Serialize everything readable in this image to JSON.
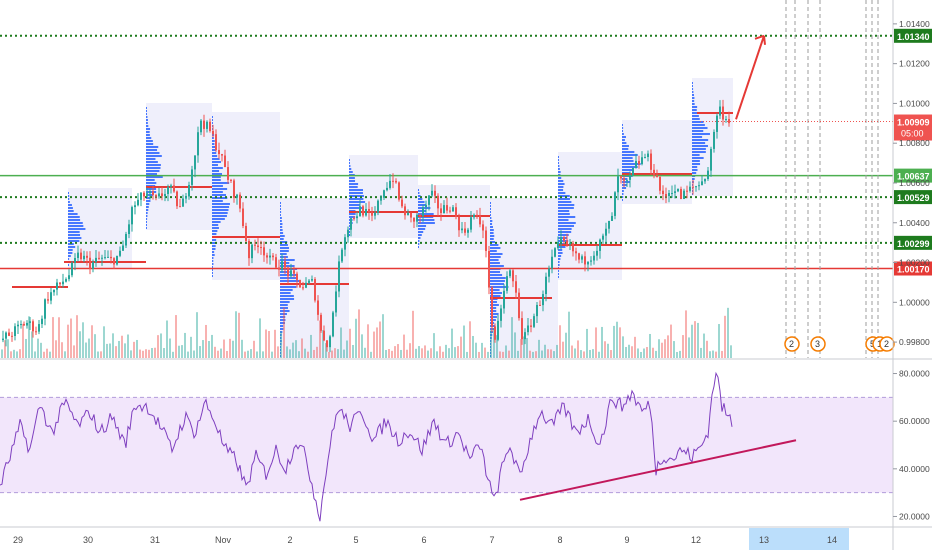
{
  "chart_data": [
    {
      "type": "candlestick",
      "panel": "price",
      "y_axis_ticks": [
        "1.01400",
        "1.01200",
        "1.01000",
        "1.00800",
        "1.00600",
        "1.00400",
        "1.00200",
        "1.00000",
        "0.99800"
      ],
      "ylim": [
        0.9972,
        1.0152
      ],
      "horizontal_levels": [
        {
          "value": 1.0134,
          "label": "1.01340",
          "style": "dotted",
          "color": "#1e7b1e"
        },
        {
          "value": 1.00637,
          "label": "1.00637",
          "style": "solid",
          "color": "#4caf50"
        },
        {
          "value": 1.00529,
          "label": "1.00529",
          "style": "dotted",
          "color": "#1e7b1e"
        },
        {
          "value": 1.00299,
          "label": "1.00299",
          "style": "dotted",
          "color": "#1e7b1e"
        },
        {
          "value": 1.0017,
          "label": "1.00170",
          "style": "solid",
          "color": "#e53935"
        }
      ],
      "current_price": {
        "value": 1.00909,
        "label": "1.00909",
        "countdown": "05:00",
        "color": "#ef5350"
      },
      "price_path": [
        {
          "t": 0,
          "p": 0.9981
        },
        {
          "t": 12,
          "p": 0.9985
        },
        {
          "t": 25,
          "p": 0.999
        },
        {
          "t": 37,
          "p": 0.9986
        },
        {
          "t": 45,
          "p": 1.0002
        },
        {
          "t": 57,
          "p": 1.0008
        },
        {
          "t": 68,
          "p": 1.0014
        },
        {
          "t": 78,
          "p": 1.0024
        },
        {
          "t": 90,
          "p": 1.0019
        },
        {
          "t": 100,
          "p": 1.0022
        },
        {
          "t": 110,
          "p": 1.0021
        },
        {
          "t": 120,
          "p": 1.0024
        },
        {
          "t": 132,
          "p": 1.0048
        },
        {
          "t": 145,
          "p": 1.0055
        },
        {
          "t": 155,
          "p": 1.0051
        },
        {
          "t": 168,
          "p": 1.0058
        },
        {
          "t": 180,
          "p": 1.0046
        },
        {
          "t": 192,
          "p": 1.007
        },
        {
          "t": 200,
          "p": 1.0092
        },
        {
          "t": 210,
          "p": 1.0085
        },
        {
          "t": 218,
          "p": 1.0076
        },
        {
          "t": 228,
          "p": 1.0061
        },
        {
          "t": 238,
          "p": 1.005
        },
        {
          "t": 248,
          "p": 1.0024
        },
        {
          "t": 258,
          "p": 1.0031
        },
        {
          "t": 268,
          "p": 1.0021
        },
        {
          "t": 280,
          "p": 1.0019
        },
        {
          "t": 292,
          "p": 1.0012
        },
        {
          "t": 302,
          "p": 1.0008
        },
        {
          "t": 312,
          "p": 1.001
        },
        {
          "t": 320,
          "p": 0.9985
        },
        {
          "t": 328,
          "p": 0.9978
        },
        {
          "t": 334,
          "p": 1.0004
        },
        {
          "t": 342,
          "p": 1.0032
        },
        {
          "t": 350,
          "p": 1.0042
        },
        {
          "t": 360,
          "p": 1.0047
        },
        {
          "t": 372,
          "p": 1.0041
        },
        {
          "t": 382,
          "p": 1.0057
        },
        {
          "t": 392,
          "p": 1.0063
        },
        {
          "t": 400,
          "p": 1.0048
        },
        {
          "t": 410,
          "p": 1.0041
        },
        {
          "t": 420,
          "p": 1.0044
        },
        {
          "t": 430,
          "p": 1.0054
        },
        {
          "t": 440,
          "p": 1.0046
        },
        {
          "t": 450,
          "p": 1.0049
        },
        {
          "t": 462,
          "p": 1.0034
        },
        {
          "t": 472,
          "p": 1.0044
        },
        {
          "t": 482,
          "p": 1.0038
        },
        {
          "t": 488,
          "p": 1.0009
        },
        {
          "t": 493,
          "p": 0.9975
        },
        {
          "t": 500,
          "p": 0.9998
        },
        {
          "t": 508,
          "p": 1.0017
        },
        {
          "t": 515,
          "p": 1.0004
        },
        {
          "t": 522,
          "p": 0.998
        },
        {
          "t": 530,
          "p": 0.999
        },
        {
          "t": 538,
          "p": 0.9999
        },
        {
          "t": 545,
          "p": 1.0011
        },
        {
          "t": 553,
          "p": 1.0024
        },
        {
          "t": 560,
          "p": 1.003
        },
        {
          "t": 570,
          "p": 1.0027
        },
        {
          "t": 580,
          "p": 1.002
        },
        {
          "t": 590,
          "p": 1.0024
        },
        {
          "t": 600,
          "p": 1.003
        },
        {
          "t": 610,
          "p": 1.0041
        },
        {
          "t": 617,
          "p": 1.0062
        },
        {
          "t": 625,
          "p": 1.0058
        },
        {
          "t": 635,
          "p": 1.0069
        },
        {
          "t": 645,
          "p": 1.0074
        },
        {
          "t": 655,
          "p": 1.0064
        },
        {
          "t": 662,
          "p": 1.0052
        },
        {
          "t": 672,
          "p": 1.0058
        },
        {
          "t": 680,
          "p": 1.0053
        },
        {
          "t": 690,
          "p": 1.0057
        },
        {
          "t": 700,
          "p": 1.006
        },
        {
          "t": 708,
          "p": 1.0068
        },
        {
          "t": 713,
          "p": 1.0087
        },
        {
          "t": 718,
          "p": 1.0098
        },
        {
          "t": 724,
          "p": 1.0093
        },
        {
          "t": 728,
          "p": 1.0092
        }
      ],
      "projection_arrow": {
        "from": {
          "t": 736,
          "p": 1.0092
        },
        "to": {
          "t": 764,
          "p": 1.0134
        },
        "color": "#e53935"
      }
    },
    {
      "type": "line",
      "panel": "rsi",
      "y_axis_ticks": [
        "80.0000",
        "60.0000",
        "40.0000",
        "20.0000"
      ],
      "ylim": [
        16,
        84
      ],
      "band": {
        "upper": 70,
        "lower": 30
      },
      "trendline": {
        "from": {
          "t": 520,
          "v": 27
        },
        "to": {
          "t": 796,
          "v": 52
        },
        "color": "#c2185b"
      },
      "rsi_path": [
        {
          "t": 0,
          "v": 33
        },
        {
          "t": 10,
          "v": 45
        },
        {
          "t": 20,
          "v": 58
        },
        {
          "t": 30,
          "v": 48
        },
        {
          "t": 40,
          "v": 67
        },
        {
          "t": 52,
          "v": 55
        },
        {
          "t": 65,
          "v": 68
        },
        {
          "t": 78,
          "v": 58
        },
        {
          "t": 90,
          "v": 64
        },
        {
          "t": 100,
          "v": 55
        },
        {
          "t": 112,
          "v": 62
        },
        {
          "t": 125,
          "v": 50
        },
        {
          "t": 135,
          "v": 67
        },
        {
          "t": 148,
          "v": 66
        },
        {
          "t": 160,
          "v": 58
        },
        {
          "t": 172,
          "v": 48
        },
        {
          "t": 185,
          "v": 62
        },
        {
          "t": 195,
          "v": 55
        },
        {
          "t": 205,
          "v": 68
        },
        {
          "t": 215,
          "v": 60
        },
        {
          "t": 225,
          "v": 48
        },
        {
          "t": 236,
          "v": 44
        },
        {
          "t": 246,
          "v": 32
        },
        {
          "t": 256,
          "v": 45
        },
        {
          "t": 266,
          "v": 38
        },
        {
          "t": 276,
          "v": 48
        },
        {
          "t": 286,
          "v": 40
        },
        {
          "t": 296,
          "v": 52
        },
        {
          "t": 306,
          "v": 45
        },
        {
          "t": 314,
          "v": 30
        },
        {
          "t": 320,
          "v": 20
        },
        {
          "t": 328,
          "v": 45
        },
        {
          "t": 338,
          "v": 66
        },
        {
          "t": 350,
          "v": 58
        },
        {
          "t": 362,
          "v": 64
        },
        {
          "t": 374,
          "v": 52
        },
        {
          "t": 386,
          "v": 60
        },
        {
          "t": 398,
          "v": 52
        },
        {
          "t": 410,
          "v": 56
        },
        {
          "t": 422,
          "v": 48
        },
        {
          "t": 434,
          "v": 60
        },
        {
          "t": 446,
          "v": 50
        },
        {
          "t": 458,
          "v": 55
        },
        {
          "t": 470,
          "v": 44
        },
        {
          "t": 480,
          "v": 50
        },
        {
          "t": 488,
          "v": 36
        },
        {
          "t": 494,
          "v": 26
        },
        {
          "t": 502,
          "v": 40
        },
        {
          "t": 510,
          "v": 50
        },
        {
          "t": 520,
          "v": 36
        },
        {
          "t": 530,
          "v": 52
        },
        {
          "t": 540,
          "v": 64
        },
        {
          "t": 552,
          "v": 58
        },
        {
          "t": 564,
          "v": 66
        },
        {
          "t": 576,
          "v": 55
        },
        {
          "t": 588,
          "v": 61
        },
        {
          "t": 600,
          "v": 50
        },
        {
          "t": 612,
          "v": 70
        },
        {
          "t": 622,
          "v": 66
        },
        {
          "t": 632,
          "v": 72
        },
        {
          "t": 642,
          "v": 64
        },
        {
          "t": 650,
          "v": 67
        },
        {
          "t": 656,
          "v": 40
        },
        {
          "t": 664,
          "v": 46
        },
        {
          "t": 672,
          "v": 44
        },
        {
          "t": 682,
          "v": 48
        },
        {
          "t": 692,
          "v": 45
        },
        {
          "t": 702,
          "v": 50
        },
        {
          "t": 708,
          "v": 56
        },
        {
          "t": 712,
          "v": 70
        },
        {
          "t": 716,
          "v": 82
        },
        {
          "t": 722,
          "v": 66
        },
        {
          "t": 728,
          "v": 62
        },
        {
          "t": 732,
          "v": 60
        }
      ]
    }
  ],
  "x_axis_labels": [
    {
      "label": "29",
      "t": 18
    },
    {
      "label": "30",
      "t": 88
    },
    {
      "label": "31",
      "t": 155
    },
    {
      "label": "Nov",
      "t": 223
    },
    {
      "label": "2",
      "t": 290
    },
    {
      "label": "5",
      "t": 356
    },
    {
      "label": "6",
      "t": 424
    },
    {
      "label": "7",
      "t": 492
    },
    {
      "label": "8",
      "t": 560
    },
    {
      "label": "9",
      "t": 627
    },
    {
      "label": "12",
      "t": 696
    },
    {
      "label": "13",
      "t": 764
    },
    {
      "label": "14",
      "t": 832
    }
  ],
  "event_markers": [
    {
      "label": "2",
      "t": 792
    },
    {
      "label": "3",
      "t": 818
    },
    {
      "label": "5",
      "t": 873
    },
    {
      "label": "1",
      "t": 880
    },
    {
      "label": "2",
      "t": 887
    }
  ],
  "colors": {
    "bull": "#26a69a",
    "bear": "#ef5350",
    "rsi_line": "#7e3fbf",
    "rsi_band": "#f2e6fb",
    "profile_box": "#e9e9f9",
    "profile_bar": "#2962ff",
    "highlight_axis": "#bbdefb"
  }
}
